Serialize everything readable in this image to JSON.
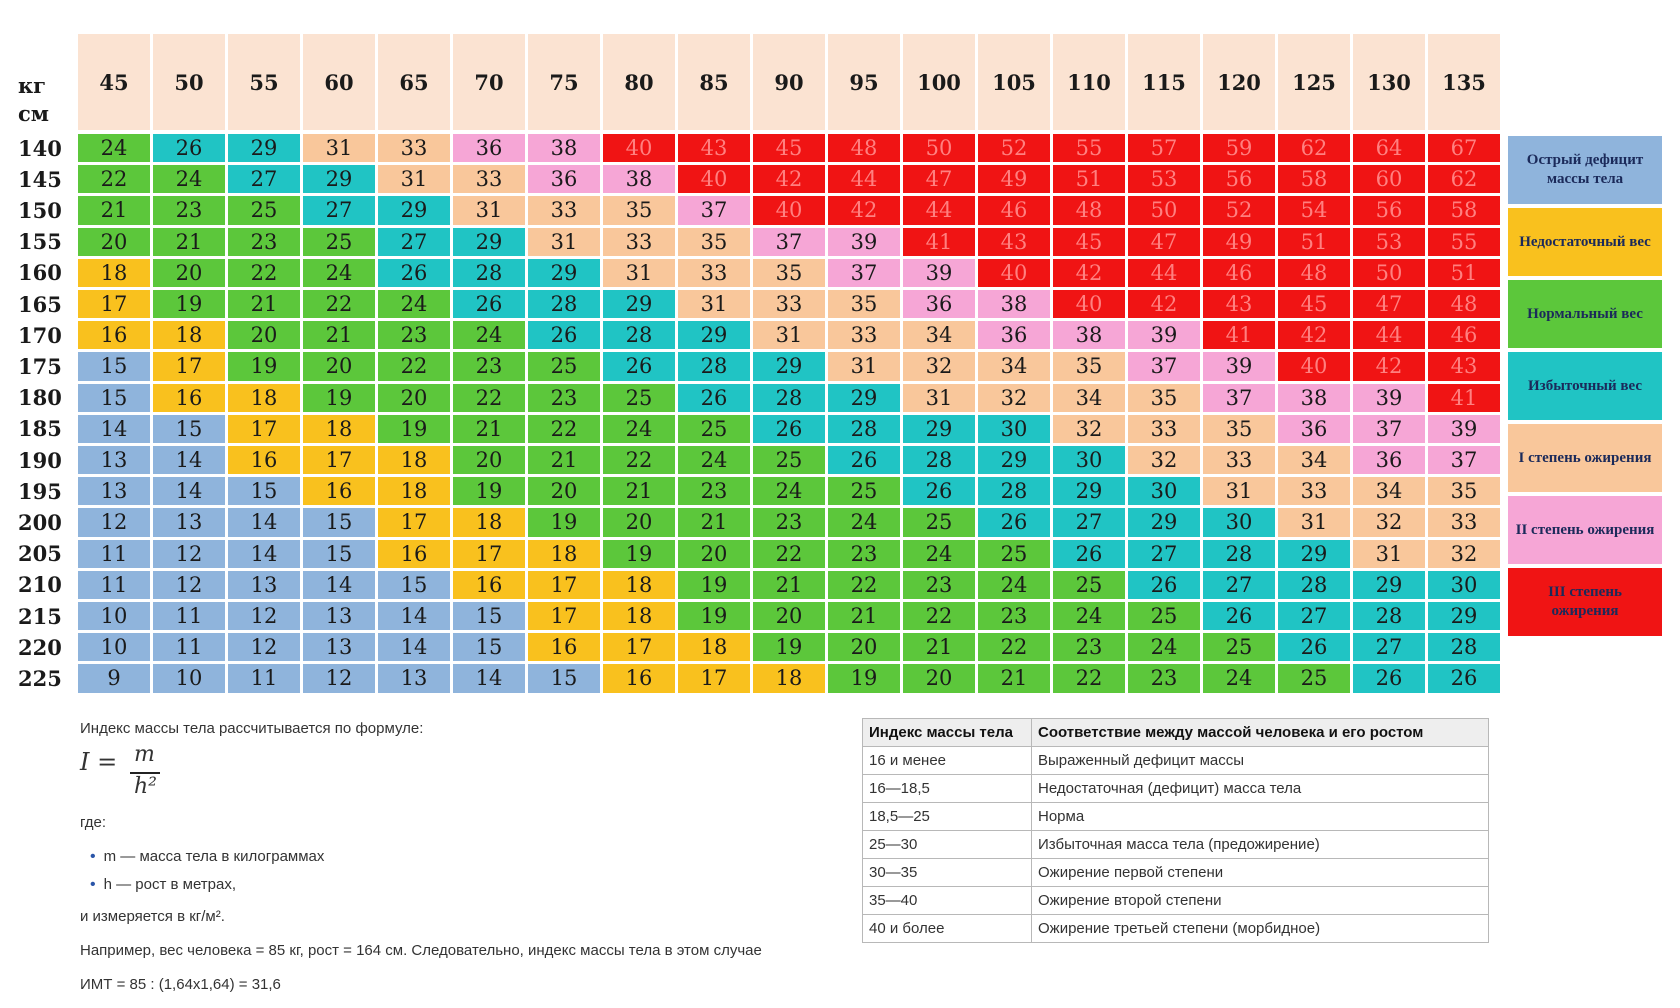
{
  "units": {
    "weight": "кг",
    "height": "см"
  },
  "weights": [
    "45",
    "50",
    "55",
    "60",
    "65",
    "70",
    "75",
    "80",
    "85",
    "90",
    "95",
    "100",
    "105",
    "110",
    "115",
    "120",
    "125",
    "130",
    "135"
  ],
  "heights": [
    "140",
    "145",
    "150",
    "155",
    "160",
    "165",
    "170",
    "175",
    "180",
    "185",
    "190",
    "195",
    "200",
    "205",
    "210",
    "215",
    "220",
    "225"
  ],
  "values": [
    [
      24,
      26,
      29,
      31,
      33,
      36,
      38,
      40,
      43,
      45,
      48,
      50,
      52,
      55,
      57,
      59,
      62,
      64,
      67
    ],
    [
      22,
      24,
      27,
      29,
      31,
      33,
      36,
      38,
      40,
      42,
      44,
      47,
      49,
      51,
      53,
      56,
      58,
      60,
      62
    ],
    [
      21,
      23,
      25,
      27,
      29,
      31,
      33,
      35,
      37,
      40,
      42,
      44,
      46,
      48,
      50,
      52,
      54,
      56,
      58
    ],
    [
      20,
      21,
      23,
      25,
      27,
      29,
      31,
      33,
      35,
      37,
      39,
      41,
      43,
      45,
      47,
      49,
      51,
      53,
      55
    ],
    [
      18,
      20,
      22,
      24,
      26,
      28,
      29,
      31,
      33,
      35,
      37,
      39,
      40,
      42,
      44,
      46,
      48,
      50,
      51
    ],
    [
      17,
      19,
      21,
      22,
      24,
      26,
      28,
      29,
      31,
      33,
      35,
      36,
      38,
      40,
      42,
      43,
      45,
      47,
      48
    ],
    [
      16,
      18,
      20,
      21,
      23,
      24,
      26,
      28,
      29,
      31,
      33,
      34,
      36,
      38,
      39,
      41,
      42,
      44,
      46
    ],
    [
      15,
      17,
      19,
      20,
      22,
      23,
      25,
      26,
      28,
      29,
      31,
      32,
      34,
      35,
      37,
      39,
      40,
      42,
      43
    ],
    [
      15,
      16,
      18,
      19,
      20,
      22,
      23,
      25,
      26,
      28,
      29,
      31,
      32,
      34,
      35,
      37,
      38,
      39,
      41
    ],
    [
      14,
      15,
      17,
      18,
      19,
      21,
      22,
      24,
      25,
      26,
      28,
      29,
      30,
      32,
      33,
      35,
      36,
      37,
      39
    ],
    [
      13,
      14,
      16,
      17,
      18,
      20,
      21,
      22,
      24,
      25,
      26,
      28,
      29,
      30,
      32,
      33,
      34,
      36,
      37
    ],
    [
      13,
      14,
      15,
      16,
      18,
      19,
      20,
      21,
      23,
      24,
      25,
      26,
      28,
      29,
      30,
      31,
      33,
      34,
      35
    ],
    [
      12,
      13,
      14,
      15,
      17,
      18,
      19,
      20,
      21,
      23,
      24,
      25,
      26,
      27,
      29,
      30,
      31,
      32,
      33
    ],
    [
      11,
      12,
      14,
      15,
      16,
      17,
      18,
      19,
      20,
      22,
      23,
      24,
      25,
      26,
      27,
      28,
      29,
      31,
      32
    ],
    [
      11,
      12,
      13,
      14,
      15,
      16,
      17,
      18,
      19,
      21,
      22,
      23,
      24,
      25,
      26,
      27,
      28,
      29,
      30
    ],
    [
      10,
      11,
      12,
      13,
      14,
      15,
      17,
      18,
      19,
      20,
      21,
      22,
      23,
      24,
      25,
      26,
      27,
      28,
      29
    ],
    [
      10,
      11,
      12,
      13,
      14,
      15,
      16,
      17,
      18,
      19,
      20,
      21,
      22,
      23,
      24,
      25,
      26,
      27,
      28
    ],
    [
      9,
      10,
      11,
      12,
      13,
      14,
      15,
      16,
      17,
      18,
      19,
      20,
      21,
      22,
      23,
      24,
      25,
      26,
      26
    ]
  ],
  "categories": [
    {
      "label": "Острый дефицит массы тела",
      "color": "#8fb4dc"
    },
    {
      "label": "Недостаточный вес",
      "color": "#f9c11e"
    },
    {
      "label": "Нормальный вес",
      "color": "#5cc73b"
    },
    {
      "label": "Избыточный вес",
      "color": "#20c4c4"
    },
    {
      "label": "I степень ожирения",
      "color": "#f9c79b"
    },
    {
      "label": "II степень ожирения",
      "color": "#f6a6d6"
    },
    {
      "label": "III степень ожирения",
      "color": "#f01414"
    }
  ],
  "formula": {
    "intro": "Индекс массы тела рассчитывается по формуле:",
    "lhs": "I =",
    "numerator": "m",
    "denominator": "h²",
    "where": "где:",
    "bullets": [
      "m — масса тела в килограммах",
      "h — рост в метрах,"
    ],
    "units_line": "и измеряется в кг/м².",
    "example": "Например, вес человека = 85 кг, рост = 164 см. Следовательно, индекс массы тела в этом случае",
    "example_calc": "ИМТ = 85 : (1,64х1,64) = 31,6"
  },
  "table": {
    "headers": [
      "Индекс массы тела",
      "Соответствие между массой человека и его ростом"
    ],
    "rows": [
      [
        "16 и менее",
        "Выраженный дефицит массы"
      ],
      [
        "16—18,5",
        "Недостаточная (дефицит) масса тела"
      ],
      [
        "18,5—25",
        "Норма"
      ],
      [
        "25—30",
        "Избыточная масса тела (предожирение)"
      ],
      [
        "30—35",
        "Ожирение первой степени"
      ],
      [
        "35—40",
        "Ожирение второй степени"
      ],
      [
        "40 и более",
        "Ожирение третьей степени (морбидное)"
      ]
    ]
  }
}
